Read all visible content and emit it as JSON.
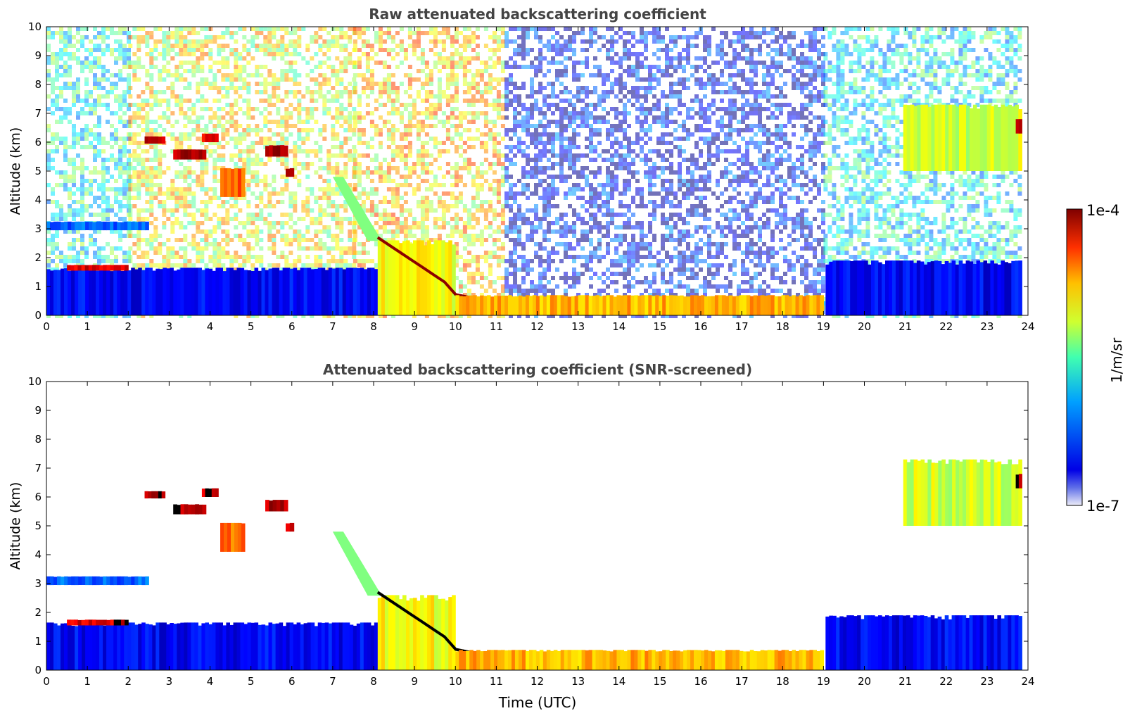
{
  "chart_data": [
    {
      "type": "heatmap",
      "title": "Raw attenuated backscattering coefficient",
      "xlabel": "",
      "ylabel": "Altitude (km)",
      "xlim": [
        0,
        24
      ],
      "ylim": [
        0,
        10
      ],
      "xticks": [
        "0",
        "1",
        "2",
        "3",
        "4",
        "5",
        "6",
        "7",
        "8",
        "9",
        "10",
        "11",
        "12",
        "13",
        "14",
        "15",
        "16",
        "17",
        "18",
        "19",
        "20",
        "21",
        "22",
        "23",
        "24"
      ],
      "yticks": [
        "0",
        "1",
        "2",
        "3",
        "4",
        "5",
        "6",
        "7",
        "8",
        "9",
        "10"
      ],
      "data_end_time": 23.85,
      "features": [
        {
          "kind": "boundary_layer",
          "t0": 0.0,
          "t1": 8.1,
          "z0": 0.0,
          "z1": 1.65,
          "level": 0.12
        },
        {
          "kind": "aerosol_layer",
          "t0": 0.0,
          "t1": 2.5,
          "z0": 2.95,
          "z1": 3.25,
          "level": 0.22
        },
        {
          "kind": "thin_cloud",
          "t0": 0.5,
          "t1": 2.0,
          "z0": 1.55,
          "z1": 1.75,
          "level": 0.9
        },
        {
          "kind": "cloud",
          "t0": 2.4,
          "t1": 2.9,
          "z0": 5.95,
          "z1": 6.2,
          "level": 0.95
        },
        {
          "kind": "cloud",
          "t0": 3.1,
          "t1": 3.9,
          "z0": 5.4,
          "z1": 5.75,
          "level": 0.95
        },
        {
          "kind": "cloud",
          "t0": 3.8,
          "t1": 4.2,
          "z0": 6.0,
          "z1": 6.3,
          "level": 0.9
        },
        {
          "kind": "cloud",
          "t0": 4.25,
          "t1": 4.85,
          "z0": 4.1,
          "z1": 5.1,
          "level": 0.78
        },
        {
          "kind": "cloud",
          "t0": 5.35,
          "t1": 5.9,
          "z0": 5.5,
          "z1": 5.9,
          "level": 0.95
        },
        {
          "kind": "cloud",
          "t0": 5.85,
          "t1": 6.05,
          "z0": 4.8,
          "z1": 5.1,
          "level": 0.9
        },
        {
          "kind": "slanted_layer",
          "t0": 7.0,
          "t1": 8.2,
          "z0": 2.7,
          "z1": 4.8,
          "level": 0.5
        },
        {
          "kind": "precipitation",
          "t0": 8.1,
          "t1": 10.0,
          "z0": 0.0,
          "z1": 2.6,
          "level": 0.62
        },
        {
          "kind": "cloud_base",
          "t0": 8.1,
          "t1": 19.0,
          "z0": 0.1,
          "z1": 2.7,
          "level": 1.0
        },
        {
          "kind": "fog_layer",
          "t0": 10.0,
          "t1": 19.0,
          "z0": 0.0,
          "z1": 0.7,
          "level": 0.7
        },
        {
          "kind": "boundary_layer",
          "t0": 19.05,
          "t1": 23.85,
          "z0": 0.0,
          "z1": 1.9,
          "level": 0.12
        },
        {
          "kind": "cloud",
          "t0": 20.95,
          "t1": 23.85,
          "z0": 5.0,
          "z1": 7.3,
          "level": 0.58
        },
        {
          "kind": "cloud",
          "t0": 23.7,
          "t1": 23.85,
          "z0": 6.3,
          "z1": 6.8,
          "level": 0.95
        }
      ],
      "noise_regions": [
        {
          "t0": 0.0,
          "t1": 2.0,
          "level": 0.4
        },
        {
          "t0": 2.0,
          "t1": 7.5,
          "level": 0.6
        },
        {
          "t0": 7.5,
          "t1": 11.2,
          "level": 0.65
        },
        {
          "t0": 11.2,
          "t1": 19.0,
          "level": 0.12
        },
        {
          "t0": 19.0,
          "t1": 23.85,
          "level": 0.38
        }
      ]
    },
    {
      "type": "heatmap",
      "title": "Attenuated backscattering coefficient (SNR-screened)",
      "xlabel": "Time (UTC)",
      "ylabel": "Altitude (km)",
      "xlim": [
        0,
        24
      ],
      "ylim": [
        0,
        10
      ],
      "xticks": [
        "0",
        "1",
        "2",
        "3",
        "4",
        "5",
        "6",
        "7",
        "8",
        "9",
        "10",
        "11",
        "12",
        "13",
        "14",
        "15",
        "16",
        "17",
        "18",
        "19",
        "20",
        "21",
        "22",
        "23",
        "24"
      ],
      "yticks": [
        "0",
        "1",
        "2",
        "3",
        "4",
        "5",
        "6",
        "7",
        "8",
        "9",
        "10"
      ],
      "data_end_time": 23.85,
      "features": [
        {
          "kind": "boundary_layer",
          "t0": 0.0,
          "t1": 8.1,
          "z0": 0.0,
          "z1": 1.65,
          "level": 0.12
        },
        {
          "kind": "aerosol_layer",
          "t0": 0.0,
          "t1": 2.5,
          "z0": 2.95,
          "z1": 3.25,
          "level": 0.22
        },
        {
          "kind": "thin_cloud",
          "t0": 0.5,
          "t1": 2.0,
          "z0": 1.55,
          "z1": 1.75,
          "level": 0.9
        },
        {
          "kind": "cloud",
          "t0": 2.4,
          "t1": 2.9,
          "z0": 5.95,
          "z1": 6.2,
          "level": 0.95
        },
        {
          "kind": "cloud",
          "t0": 3.1,
          "t1": 3.9,
          "z0": 5.4,
          "z1": 5.75,
          "level": 0.95
        },
        {
          "kind": "cloud",
          "t0": 3.8,
          "t1": 4.2,
          "z0": 6.0,
          "z1": 6.3,
          "level": 0.9
        },
        {
          "kind": "cloud",
          "t0": 4.25,
          "t1": 4.85,
          "z0": 4.1,
          "z1": 5.1,
          "level": 0.78
        },
        {
          "kind": "cloud",
          "t0": 5.35,
          "t1": 5.9,
          "z0": 5.5,
          "z1": 5.9,
          "level": 0.95
        },
        {
          "kind": "cloud",
          "t0": 5.85,
          "t1": 6.05,
          "z0": 4.8,
          "z1": 5.1,
          "level": 0.9
        },
        {
          "kind": "slanted_layer",
          "t0": 7.0,
          "t1": 8.2,
          "z0": 2.7,
          "z1": 4.8,
          "level": 0.5
        },
        {
          "kind": "precipitation",
          "t0": 8.1,
          "t1": 10.0,
          "z0": 0.0,
          "z1": 2.6,
          "level": 0.62
        },
        {
          "kind": "cloud_base",
          "t0": 8.1,
          "t1": 19.0,
          "z0": 0.1,
          "z1": 2.7,
          "level": 1.0
        },
        {
          "kind": "fog_layer",
          "t0": 10.0,
          "t1": 19.0,
          "z0": 0.0,
          "z1": 0.7,
          "level": 0.7
        },
        {
          "kind": "boundary_layer",
          "t0": 19.05,
          "t1": 23.85,
          "z0": 0.0,
          "z1": 1.9,
          "level": 0.12
        },
        {
          "kind": "cloud",
          "t0": 20.95,
          "t1": 23.85,
          "z0": 5.0,
          "z1": 7.3,
          "level": 0.58
        },
        {
          "kind": "cloud",
          "t0": 23.7,
          "t1": 23.85,
          "z0": 6.3,
          "z1": 6.8,
          "level": 0.95
        }
      ],
      "noise_regions": []
    }
  ],
  "colorbar": {
    "label": "1/m/sr",
    "max_label": "1e-4",
    "min_label": "1e-7",
    "colormap": "jet"
  },
  "colors": {
    "background": "#ffffff",
    "title_text": "#444444",
    "axis": "#000000",
    "jet_low": "#00007f",
    "jet_mid": "#7fff7f",
    "jet_high": "#7f0000",
    "blackout": "#000000"
  }
}
